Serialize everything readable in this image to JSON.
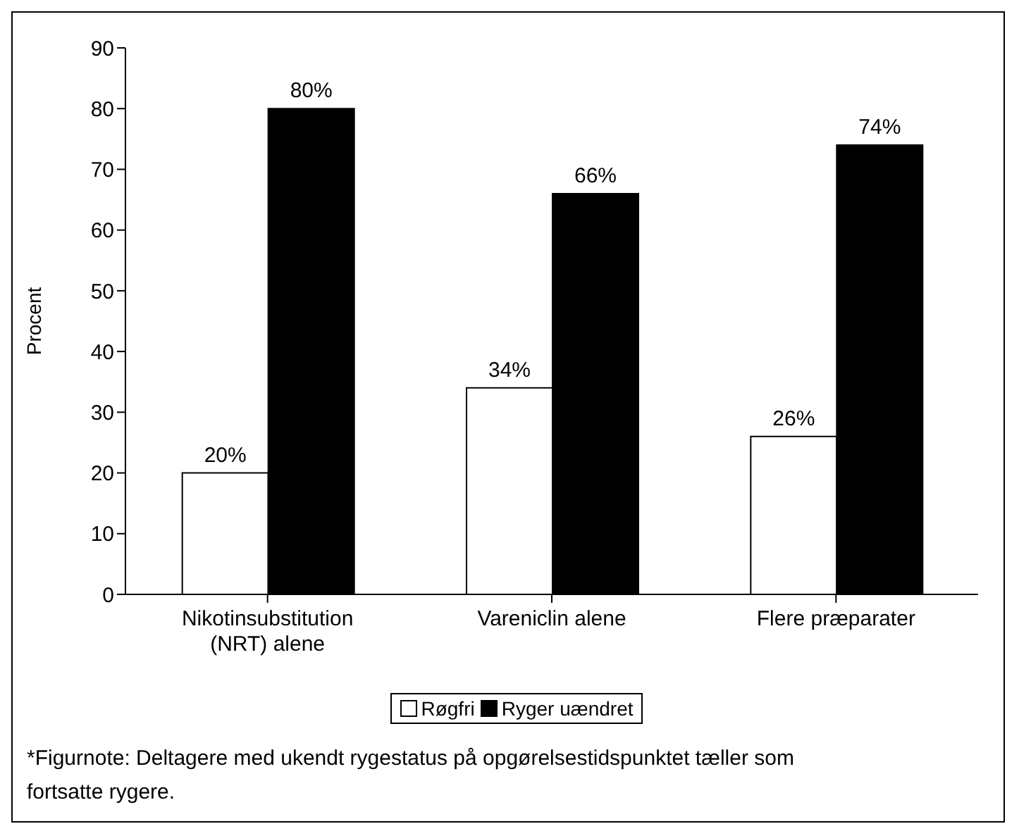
{
  "chart_data": {
    "type": "bar",
    "ylabel": "Procent",
    "categories": [
      "Nikotinsubstitution (NRT) alene",
      "Vareniclin alene",
      "Flere præparater"
    ],
    "series": [
      {
        "name": "Røgfri",
        "color": "#ffffff",
        "values": [
          20,
          34,
          26
        ],
        "value_labels": [
          "20%",
          "34%",
          "26%"
        ]
      },
      {
        "name": "Ryger uændret",
        "color": "#000000",
        "values": [
          80,
          66,
          74
        ],
        "value_labels": [
          "80%",
          "66%",
          "74%"
        ]
      }
    ],
    "ylim": [
      0,
      90
    ],
    "yticks": [
      0,
      10,
      20,
      30,
      40,
      50,
      60,
      70,
      80,
      90
    ],
    "grid": false,
    "legend": "bottom",
    "annotations": [
      "*Figurnote: Deltagere med ukendt rygestatus på opgørelsestidspunktet tæller som fortsatte rygere."
    ]
  }
}
